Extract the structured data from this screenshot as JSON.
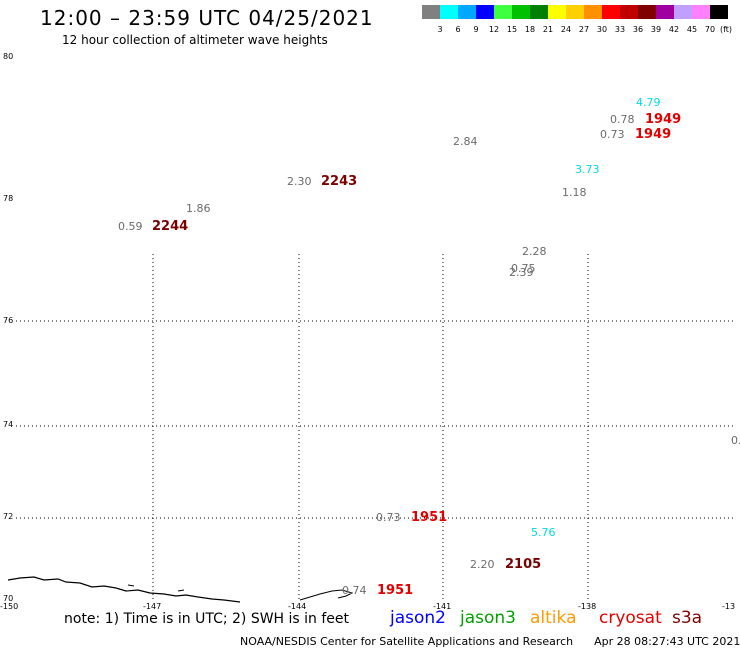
{
  "header": {
    "title": "12:00 – 23:59 UTC 04/25/2021",
    "subtitle": "12 hour collection of altimeter wave heights"
  },
  "legend": {
    "unit": "(ft)",
    "items": [
      {
        "label": "3",
        "color": "#808080"
      },
      {
        "label": "6",
        "color": "#00ffff"
      },
      {
        "label": "9",
        "color": "#00a8ff"
      },
      {
        "label": "12",
        "color": "#0000ff"
      },
      {
        "label": "15",
        "color": "#40ff40"
      },
      {
        "label": "18",
        "color": "#00c000"
      },
      {
        "label": "21",
        "color": "#008000"
      },
      {
        "label": "24",
        "color": "#ffff00"
      },
      {
        "label": "27",
        "color": "#ffd000"
      },
      {
        "label": "30",
        "color": "#ff9000"
      },
      {
        "label": "33",
        "color": "#ff0000"
      },
      {
        "label": "36",
        "color": "#c00000"
      },
      {
        "label": "39",
        "color": "#800000"
      },
      {
        "label": "42",
        "color": "#a000a0"
      },
      {
        "label": "45",
        "color": "#c0a0ff"
      },
      {
        "label": "70",
        "color": "#ff80ff"
      },
      {
        "label": "",
        "color": "#000000"
      }
    ]
  },
  "map": {
    "lat_labels": [
      "80",
      "78",
      "76",
      "74",
      "72",
      "70"
    ],
    "lon_labels": [
      "-150",
      "-147",
      "-144",
      "-141",
      "-138",
      "-13"
    ],
    "wave_heights": [
      {
        "text": "4.79",
        "style": "cyan"
      },
      {
        "text": "0.78",
        "style": "gray"
      },
      {
        "text": "1949",
        "style": "red"
      },
      {
        "text": "0.73",
        "style": "gray"
      },
      {
        "text": "1949",
        "style": "red"
      },
      {
        "text": "2.84",
        "style": "gray"
      },
      {
        "text": "3.73",
        "style": "cyan"
      },
      {
        "text": "2.30",
        "style": "gray"
      },
      {
        "text": "2243",
        "style": "dred"
      },
      {
        "text": "1.18",
        "style": "gray"
      },
      {
        "text": "1.86",
        "style": "gray"
      },
      {
        "text": "0.59",
        "style": "gray"
      },
      {
        "text": "2244",
        "style": "dred"
      },
      {
        "text": "2.28",
        "style": "gray"
      },
      {
        "text": "0.75",
        "style": "gray"
      },
      {
        "text": "2.39",
        "style": "gray"
      },
      {
        "text": "0.",
        "style": "gray"
      },
      {
        "text": "0.73",
        "style": "gray"
      },
      {
        "text": "1951",
        "style": "red"
      },
      {
        "text": "5.76",
        "style": "cyan"
      },
      {
        "text": "2.20",
        "style": "gray"
      },
      {
        "text": "2105",
        "style": "dred"
      },
      {
        "text": "0.74",
        "style": "gray"
      },
      {
        "text": "1951",
        "style": "red"
      }
    ]
  },
  "note": "note: 1) Time is in UTC; 2) SWH is in feet",
  "satellites": [
    {
      "name": "jason2",
      "color": "#0000ff"
    },
    {
      "name": "jason3",
      "color": "#00a000"
    },
    {
      "name": "altika",
      "color": "#ff9a00"
    },
    {
      "name": "cryosat",
      "color": "#e00000"
    },
    {
      "name": "s3a",
      "color": "#800000"
    }
  ],
  "footer": {
    "agency": "NOAA/NESDIS Center for Satellite Applications and Research",
    "timestamp": "Apr 28 08:27:43 UTC 2021"
  }
}
